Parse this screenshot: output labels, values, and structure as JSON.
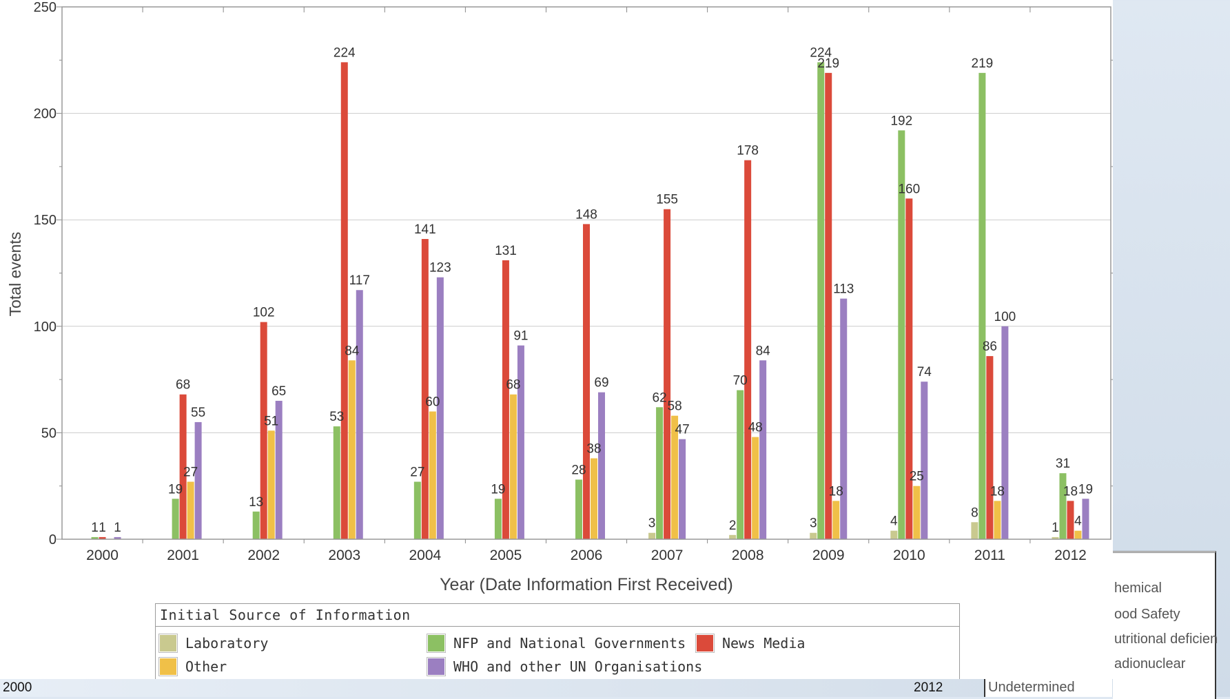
{
  "chart_data": {
    "type": "bar",
    "xlabel": "Year (Date Information First Received)",
    "ylabel": "Total events",
    "ylim": [
      0,
      250
    ],
    "yticks": [
      0,
      50,
      100,
      150,
      200,
      250
    ],
    "grid": true,
    "legend_placement": "bottom",
    "categories": [
      "2000",
      "2001",
      "2002",
      "2003",
      "2004",
      "2005",
      "2006",
      "2007",
      "2008",
      "2009",
      "2010",
      "2011",
      "2012"
    ],
    "series": [
      {
        "name": "Laboratory",
        "color": "#c9c98f",
        "values": [
          0,
          0,
          0,
          0,
          0,
          0,
          0,
          3,
          2,
          3,
          4,
          8,
          1
        ]
      },
      {
        "name": "NFP and National Governments",
        "color": "#8cc063",
        "values": [
          1,
          19,
          13,
          53,
          27,
          19,
          28,
          62,
          70,
          224,
          192,
          219,
          31
        ]
      },
      {
        "name": "News Media",
        "color": "#db4a3a",
        "values": [
          1,
          68,
          102,
          224,
          141,
          131,
          148,
          155,
          178,
          219,
          160,
          86,
          18
        ]
      },
      {
        "name": "Other",
        "color": "#f0c048",
        "values": [
          0,
          27,
          51,
          84,
          60,
          68,
          38,
          58,
          48,
          18,
          25,
          18,
          4
        ]
      },
      {
        "name": "WHO and other UN Organisations",
        "color": "#9b7fc1",
        "values": [
          1,
          55,
          65,
          117,
          123,
          91,
          69,
          47,
          84,
          113,
          74,
          100,
          19
        ]
      }
    ]
  },
  "legend": {
    "title": "Initial Source of Information"
  },
  "bottom": {
    "left_year": "2000",
    "right_year": "2012"
  },
  "side_panel": {
    "items": [
      "hemical",
      "ood Safety",
      "utritional deficien",
      "adionuclear"
    ],
    "undetermined": "Undetermined"
  }
}
